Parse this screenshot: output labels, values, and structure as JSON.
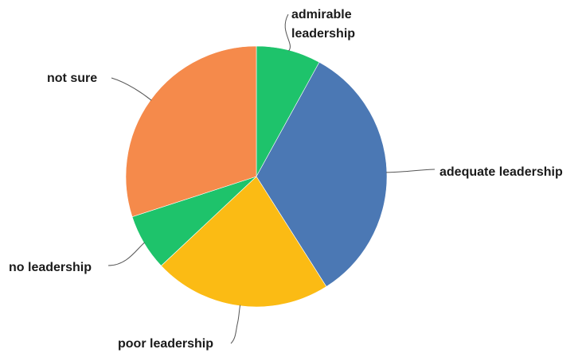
{
  "chart_data": {
    "type": "pie",
    "title": "",
    "categories": [
      "admirable leadership",
      "adequate leadership",
      "poor leadership",
      "no leadership",
      "not sure"
    ],
    "values": [
      8,
      33,
      22,
      7,
      30
    ],
    "colors": [
      "#1ec36b",
      "#4b78b4",
      "#fbbb14",
      "#1ec36b",
      "#f58a4b"
    ],
    "start_angle_deg": 0,
    "direction": "clockwise",
    "legend": "none",
    "data_labels": "category names with leader lines",
    "slices": [
      {
        "label_lines": [
          "admirable",
          "leadership"
        ]
      },
      {
        "label_lines": [
          "adequate leadership"
        ]
      },
      {
        "label_lines": [
          "poor leadership"
        ]
      },
      {
        "label_lines": [
          "no leadership"
        ]
      },
      {
        "label_lines": [
          "not sure"
        ]
      }
    ]
  }
}
